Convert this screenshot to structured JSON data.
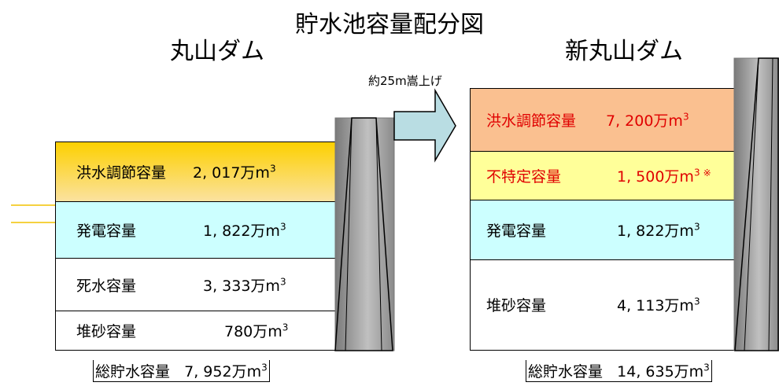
{
  "title": "貯水池容量配分図",
  "left": {
    "name": "丸山ダム",
    "rows": [
      {
        "label": "洪水調節容量",
        "value": "2, 017万m",
        "sup": "3"
      },
      {
        "label": "発電容量",
        "value": "1, 822万m",
        "sup": "3"
      },
      {
        "label": "死水容量",
        "value": "3, 333万m",
        "sup": "3"
      },
      {
        "label": "堆砂容量",
        "value": "780万m",
        "sup": "3"
      }
    ],
    "total_label": "総貯水容量",
    "total_value": "7, 952万m",
    "total_sup": "3"
  },
  "right": {
    "name": "新丸山ダム",
    "rows": [
      {
        "label": "洪水調節容量",
        "value": "7, 200万m",
        "sup": "3",
        "mark": ""
      },
      {
        "label": "不特定容量",
        "value": "1, 500万m",
        "sup": "3",
        "mark": "※"
      },
      {
        "label": "発電容量",
        "value": "1, 822万m",
        "sup": "3",
        "mark": ""
      },
      {
        "label": "堆砂容量",
        "value": "4, 113万m",
        "sup": "3",
        "mark": ""
      }
    ],
    "total_label": "総貯水容量",
    "total_value": "14, 635万m",
    "total_sup": "3"
  },
  "raise_label": "約25m嵩上げ",
  "colors": {
    "flood_old": "#f9c235",
    "power": "#ccffff",
    "flood_new": "#fac090",
    "unspecified": "#ffff99",
    "dam_dark": "#7f7f7f",
    "dam_light": "#d9d9d9",
    "arrow": "#b9dde3",
    "red_text": "#e00000"
  }
}
